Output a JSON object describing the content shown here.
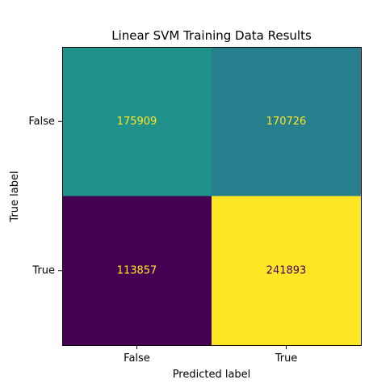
{
  "chart_data": {
    "type": "heatmap",
    "title": "Linear SVM Training Data Results",
    "xlabel": "Predicted label",
    "ylabel": "True label",
    "x_categories": [
      "False",
      "True"
    ],
    "y_categories": [
      "False",
      "True"
    ],
    "values": [
      [
        175909,
        170726
      ],
      [
        113857,
        241893
      ]
    ],
    "value_labels": [
      [
        "175909",
        "170726"
      ],
      [
        "113857",
        "241893"
      ]
    ],
    "colormap": "viridis",
    "colors": [
      [
        "#21918c",
        "#277f8e"
      ],
      [
        "#440154",
        "#fde725"
      ]
    ],
    "text_colors": [
      [
        "#fde725",
        "#fde725"
      ],
      [
        "#fde725",
        "#440154"
      ]
    ],
    "grid": false,
    "legend": "none"
  }
}
